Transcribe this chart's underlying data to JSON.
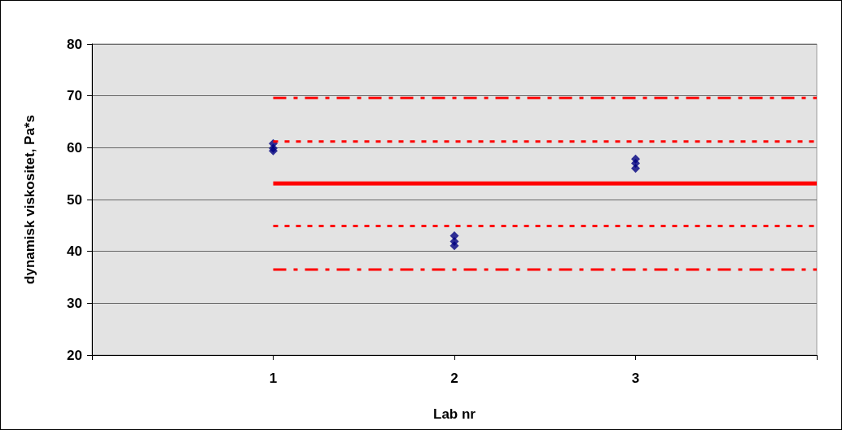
{
  "chart_data": {
    "type": "scatter",
    "xlabel": "Lab nr",
    "ylabel": "dynamisk viskositet, Pa*s",
    "xlim": [
      0,
      4
    ],
    "xticks": [
      {
        "value": 0,
        "label": null
      },
      1,
      2,
      3,
      {
        "value": 4,
        "label": null
      }
    ],
    "ylim": [
      20,
      80
    ],
    "yticks": [
      20,
      30,
      40,
      50,
      60,
      70,
      80
    ],
    "grid": "y",
    "marker": "diamond",
    "series": [
      {
        "color": "#000080",
        "x": [
          1,
          1,
          1,
          2,
          2,
          2,
          3,
          3,
          3
        ],
        "values": [
          60.8,
          59.9,
          59.4,
          43.0,
          41.9,
          41.1,
          57.8,
          57.0,
          56.0
        ]
      },
      {
        "type": "line",
        "color": "#ff0000",
        "line_style": "solid",
        "marker": "none",
        "x": [
          1,
          4
        ],
        "values": [
          53.1,
          53.1
        ]
      },
      {
        "type": "line",
        "color": "#ff0000",
        "line_style": "dotted",
        "marker": "none",
        "x": [
          1,
          4
        ],
        "values": [
          61.2,
          61.2
        ]
      },
      {
        "type": "line",
        "color": "#ff0000",
        "line_style": "dotted",
        "marker": "none",
        "x": [
          1,
          4
        ],
        "values": [
          44.9,
          44.9
        ]
      },
      {
        "type": "line",
        "color": "#ff0000",
        "line_style": "dashed",
        "marker": "none",
        "x": [
          1,
          4
        ],
        "values": [
          69.6,
          69.6
        ]
      },
      {
        "type": "line",
        "color": "#ff0000",
        "line_style": "dashed",
        "marker": "none",
        "x": [
          1,
          4
        ],
        "values": [
          36.5,
          36.5
        ]
      }
    ]
  }
}
